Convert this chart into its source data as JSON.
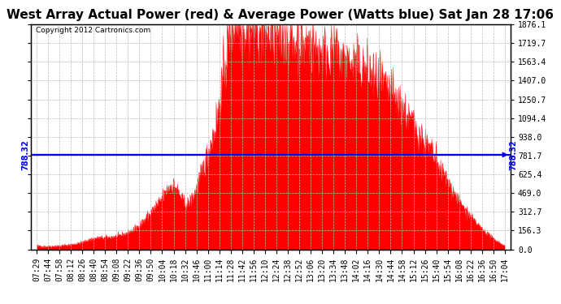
{
  "title": "West Array Actual Power (red) & Average Power (Watts blue) Sat Jan 28 17:06",
  "copyright": "Copyright 2012 Cartronics.com",
  "avg_power": 788.32,
  "ymax": 1876.1,
  "ymin": 0.0,
  "yticks": [
    0.0,
    156.3,
    312.7,
    469.0,
    625.4,
    781.7,
    938.0,
    1094.4,
    1250.7,
    1407.0,
    1563.4,
    1719.7,
    1876.1
  ],
  "fill_color": "#FF0000",
  "line_color": "#0000FF",
  "bg_color": "#FFFFFF",
  "plot_bg": "#FFFFFF",
  "x_times": [
    "07:29",
    "07:44",
    "07:58",
    "08:12",
    "08:26",
    "08:40",
    "08:54",
    "09:08",
    "09:22",
    "09:36",
    "09:50",
    "10:04",
    "10:18",
    "10:32",
    "10:46",
    "11:00",
    "11:14",
    "11:28",
    "11:42",
    "11:56",
    "12:10",
    "12:24",
    "12:38",
    "12:52",
    "13:06",
    "13:20",
    "13:34",
    "13:48",
    "14:02",
    "14:16",
    "14:30",
    "14:44",
    "14:58",
    "15:12",
    "15:26",
    "15:40",
    "15:54",
    "16:08",
    "16:22",
    "16:36",
    "16:50",
    "17:04"
  ],
  "y_values": [
    30,
    25,
    30,
    40,
    60,
    90,
    100,
    110,
    140,
    200,
    310,
    430,
    530,
    380,
    510,
    800,
    1200,
    1820,
    1860,
    1830,
    1800,
    1770,
    1750,
    1720,
    1690,
    1650,
    1620,
    1580,
    1530,
    1470,
    1390,
    1290,
    1170,
    1040,
    890,
    730,
    560,
    400,
    270,
    170,
    90,
    30
  ],
  "noise_seed": 42,
  "title_fontsize": 11,
  "tick_fontsize": 7,
  "grid_color": "#BBBBBB",
  "grid_style": "--",
  "grid_linewidth": 0.5
}
